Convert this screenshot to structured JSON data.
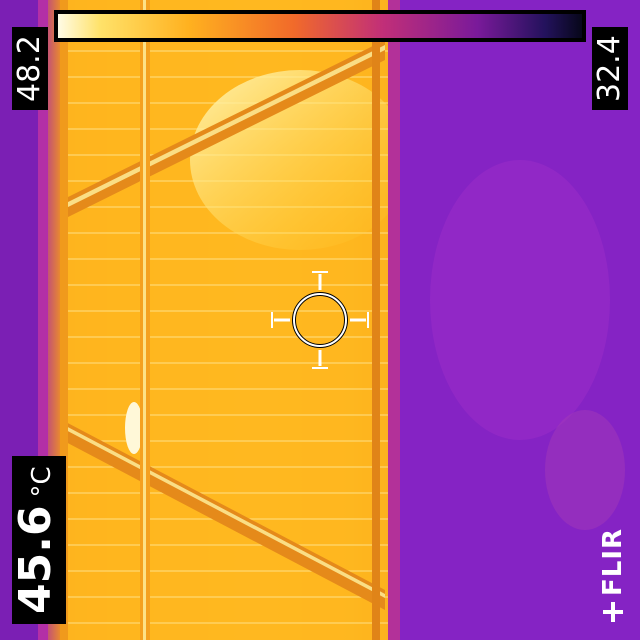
{
  "overlay": {
    "temp_max": "48.2",
    "temp_min": "32.4",
    "spot_temp": "45.6",
    "spot_unit": "°C"
  },
  "logo": {
    "text": "FLIR"
  },
  "colors": {
    "palette": "ironbow",
    "hot": "#ffd24a",
    "warm": "#f3a11d",
    "cool": "#8a24c6",
    "cold": "#070718"
  },
  "icons": {
    "crosshair": "crosshair-icon",
    "logo_mark": "flir-logo-icon"
  }
}
